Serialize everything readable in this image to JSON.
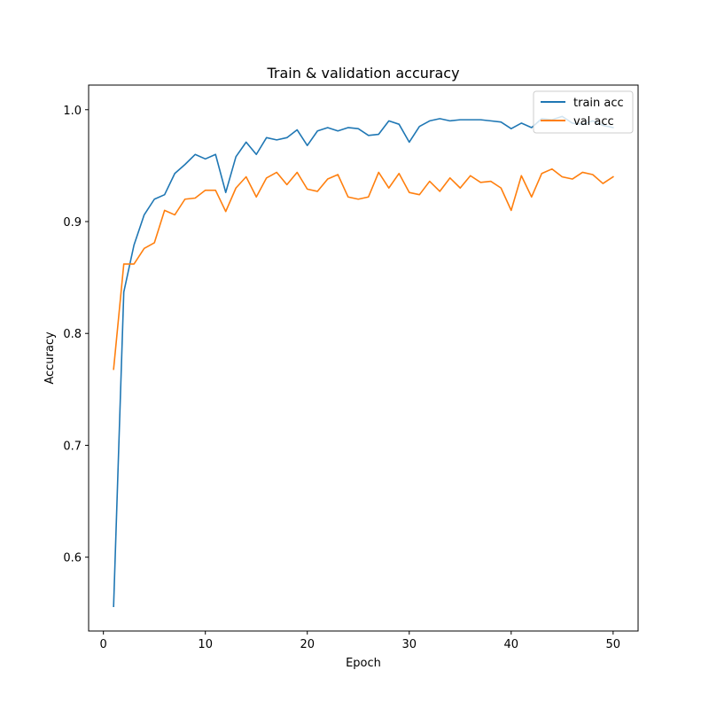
{
  "chart_data": {
    "type": "line",
    "title": "Train & validation accuracy",
    "xlabel": "Epoch",
    "ylabel": "Accuracy",
    "xlim": [
      -1.45,
      52.45
    ],
    "ylim": [
      0.534,
      1.022
    ],
    "xticks": [
      0,
      10,
      20,
      30,
      40,
      50
    ],
    "yticks": [
      0.6,
      0.7,
      0.8,
      0.9,
      1.0
    ],
    "ytick_labels": [
      "0.6",
      "0.7",
      "0.8",
      "0.9",
      "1.0"
    ],
    "grid": false,
    "legend_position": "upper right",
    "x": [
      1,
      2,
      3,
      4,
      5,
      6,
      7,
      8,
      9,
      10,
      11,
      12,
      13,
      14,
      15,
      16,
      17,
      18,
      19,
      20,
      21,
      22,
      23,
      24,
      25,
      26,
      27,
      28,
      29,
      30,
      31,
      32,
      33,
      34,
      35,
      36,
      37,
      38,
      39,
      40,
      41,
      42,
      43,
      44,
      45,
      46,
      47,
      48,
      49,
      50
    ],
    "series": [
      {
        "name": "train acc",
        "color": "#1f77b4",
        "values": [
          0.556,
          0.837,
          0.879,
          0.906,
          0.92,
          0.924,
          0.943,
          0.951,
          0.96,
          0.956,
          0.96,
          0.926,
          0.958,
          0.971,
          0.96,
          0.975,
          0.973,
          0.975,
          0.982,
          0.968,
          0.981,
          0.984,
          0.981,
          0.984,
          0.983,
          0.977,
          0.978,
          0.99,
          0.987,
          0.971,
          0.985,
          0.99,
          0.992,
          0.99,
          0.991,
          0.991,
          0.991,
          0.99,
          0.989,
          0.983,
          0.988,
          0.984,
          0.992,
          0.991,
          0.994,
          0.988,
          0.987,
          0.99,
          0.986,
          0.984
        ]
      },
      {
        "name": "val acc",
        "color": "#ff7f0e",
        "values": [
          0.768,
          0.862,
          0.862,
          0.876,
          0.881,
          0.91,
          0.906,
          0.92,
          0.921,
          0.928,
          0.928,
          0.909,
          0.93,
          0.94,
          0.922,
          0.939,
          0.944,
          0.933,
          0.944,
          0.929,
          0.927,
          0.938,
          0.942,
          0.922,
          0.92,
          0.922,
          0.944,
          0.93,
          0.943,
          0.926,
          0.924,
          0.936,
          0.927,
          0.939,
          0.93,
          0.941,
          0.935,
          0.936,
          0.93,
          0.91,
          0.941,
          0.922,
          0.943,
          0.947,
          0.94,
          0.938,
          0.944,
          0.942,
          0.934,
          0.94
        ]
      }
    ]
  }
}
